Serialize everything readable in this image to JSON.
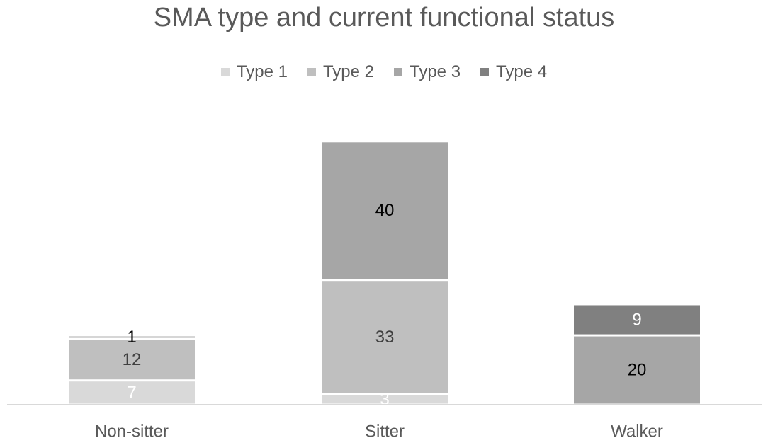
{
  "chart_data": {
    "type": "bar",
    "stacked": true,
    "title": "SMA type and current functional status",
    "xlabel": "",
    "ylabel": "",
    "categories": [
      "Non-sitter",
      "Sitter",
      "Walker"
    ],
    "series": [
      {
        "name": "Type 1",
        "color": "#d9d9d9",
        "label_color": "#ffffff",
        "values": [
          7,
          3,
          0
        ]
      },
      {
        "name": "Type 2",
        "color": "#bfbfbf",
        "label_color": "#404040",
        "values": [
          12,
          33,
          0
        ]
      },
      {
        "name": "Type 3",
        "color": "#a6a6a6",
        "label_color": "#000000",
        "values": [
          1,
          40,
          20
        ]
      },
      {
        "name": "Type 4",
        "color": "#808080",
        "label_color": "#ffffff",
        "values": [
          0,
          0,
          9
        ]
      }
    ],
    "ylim": [
      0,
      78
    ],
    "grid": false,
    "legend_position": "top"
  }
}
